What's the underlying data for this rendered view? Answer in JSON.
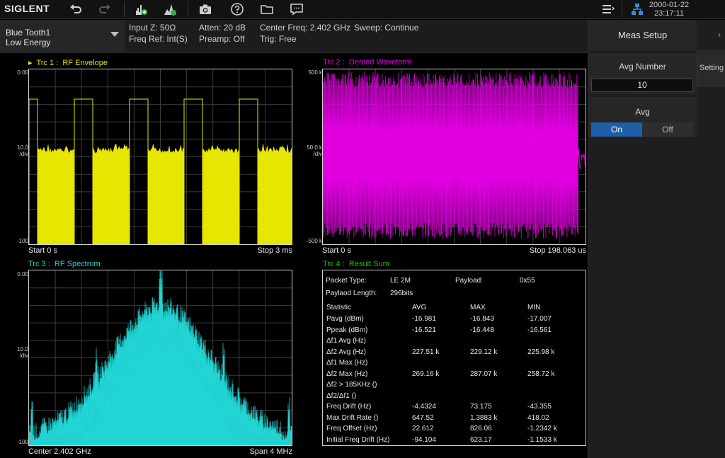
{
  "toolbar": {
    "logo": "SIGLENT",
    "icons": [
      "undo-icon",
      "redo-icon",
      "marker-add-icon",
      "marker-peak-icon",
      "camera-icon",
      "help-icon",
      "folder-icon",
      "message-icon",
      "menu-list-icon",
      "network-icon"
    ],
    "date": "2000-01-22",
    "time": "23:17:11"
  },
  "infobar": {
    "mode_line1": "Blue Tooth1",
    "mode_line2": "Low Energy",
    "input_z": "Input Z: 50Ω",
    "freq_ref": "Freq Ref: Int(S)",
    "atten": "Atten: 20 dB",
    "preamp": "Preamp: Off",
    "center_freq": "Center Freq: 2.402 GHz",
    "sweep": "Sweep: Continue",
    "trig": "Trig: Free"
  },
  "panel": {
    "title": "Meas Setup",
    "setting_tab": "Setting",
    "avg_number_label": "Avg Number",
    "avg_number_value": "10",
    "avg_label": "Avg",
    "on": "On",
    "off": "Off"
  },
  "traces": {
    "trc1": {
      "marker": "▸",
      "label": "Trc 1 :",
      "name": "RF Envelope",
      "y_top": "0.00",
      "y_div": "10.0",
      "y_div_unit": "/div",
      "y_bottom": "-100",
      "x_left": "Start 0 s",
      "x_right": "Stop 3 ms",
      "color": "#e6e600"
    },
    "trc2": {
      "label": "Trc 2 :",
      "name": "Demod Waveform",
      "y_top": "500 k",
      "y_div": "50.0 k",
      "y_div_unit": "/div",
      "y_bottom": "-500 k",
      "x_left": "Start 0 s",
      "x_right": "Stop 198.063 us",
      "color": "#e000e0"
    },
    "trc3": {
      "label": "Trc 3 :",
      "name": "RF Spectrum",
      "y_top": "0.00",
      "y_div": "10.0",
      "y_div_unit": "/div",
      "y_bottom": "-100",
      "x_left": "Center 2.402 GHz",
      "x_right": "Span 4 MHz",
      "color": "#22d4d4"
    },
    "trc4": {
      "label": "Trc 4 :",
      "name": "Result Sum",
      "color": "#00cc00"
    }
  },
  "result": {
    "packet_type_label": "Packet Type:",
    "packet_type_value": "LE 2M",
    "payload_label": "Payload:",
    "payload_value": "0x55",
    "payload_length_label": "Paylaod Length:",
    "payload_length_value": "296bits",
    "headers": [
      "Statistic",
      "AVG",
      "MAX",
      "MIN"
    ],
    "rows": [
      [
        "Pavg (dBm)",
        "-16.981",
        "-16.843",
        "-17.007"
      ],
      [
        "Ppeak (dBm)",
        "-16.521",
        "-16.448",
        "-16.561"
      ],
      [
        "Δf1 Avg (Hz)",
        "",
        "",
        ""
      ],
      [
        "Δf2 Avg (Hz)",
        "227.51 k",
        "229.12 k",
        "225.98 k"
      ],
      [
        "Δf1 Max (Hz)",
        "",
        "",
        ""
      ],
      [
        "Δf2 Max (Hz)",
        "269.16 k",
        "287.07 k",
        "258.72 k"
      ],
      [
        "Δf2 > 185KHz ()",
        "",
        "",
        ""
      ],
      [
        "Δf2/Δf1 ()",
        "",
        "",
        ""
      ],
      [
        "Freq Drift (Hz)",
        "-4.4324",
        "73.175",
        "-43.355"
      ],
      [
        "Max Drift Rate ()",
        "647.52",
        "1.3883 k",
        "418.02"
      ],
      [
        "Freq Offset (Hz)",
        "22.612",
        "826.06",
        "-1.2342 k"
      ],
      [
        "Initial Freq Drift (Hz)",
        "-94.104",
        "623.17",
        "-1.1533 k"
      ]
    ]
  }
}
